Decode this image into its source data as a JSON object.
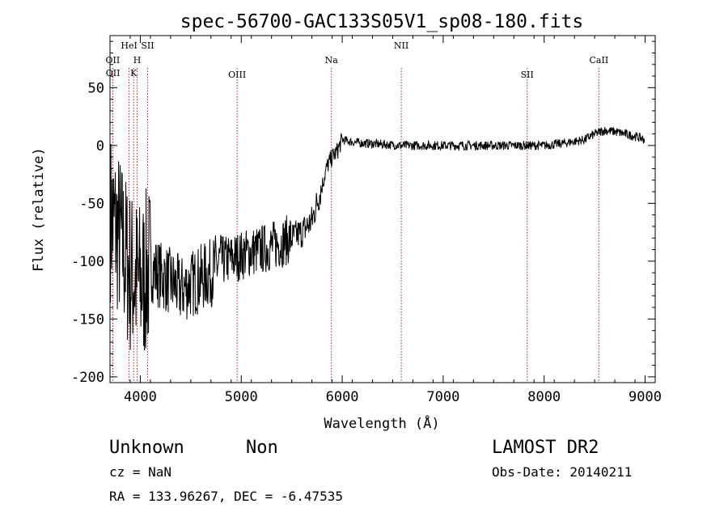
{
  "chart_data": {
    "type": "line",
    "title": "spec-56700-GAC133S05V1_sp08-180.fits",
    "xlabel": "Wavelength (Å)",
    "ylabel": "Flux (relative)",
    "xlim": [
      3700,
      9100
    ],
    "ylim": [
      -205,
      95
    ],
    "x_ticks": [
      4000,
      5000,
      6000,
      7000,
      8000,
      9000
    ],
    "y_ticks": [
      -200,
      -150,
      -100,
      -50,
      0,
      50
    ],
    "grid": false,
    "spectral_lines": [
      {
        "label": "OII",
        "x": 3727
      },
      {
        "label": "OII",
        "x": 3729
      },
      {
        "label": "HeI",
        "x": 3889
      },
      {
        "label": "K",
        "x": 3934
      },
      {
        "label": "H",
        "x": 3969
      },
      {
        "label": "SII",
        "x": 4072
      },
      {
        "label": "OIII",
        "x": 4959
      },
      {
        "label": "Na",
        "x": 5893
      },
      {
        "label": "NII",
        "x": 6585
      },
      {
        "label": "SII",
        "x": 7832
      },
      {
        "label": "CaII",
        "x": 8542
      }
    ],
    "series": [
      {
        "x": [
          3700,
          3800,
          3900,
          4000,
          4100,
          4200,
          4300,
          4400,
          4500,
          4600,
          4700,
          4800,
          4900,
          5000,
          5100,
          5200,
          5300,
          5400,
          5500,
          5600,
          5700,
          5800,
          5850,
          5900,
          5950,
          6000,
          6100,
          6200,
          6400,
          6600,
          6800,
          7000,
          7200,
          7400,
          7600,
          7800,
          8000,
          8200,
          8400,
          8500,
          8600,
          8700,
          8800,
          8900,
          9000
        ],
        "y": [
          -60,
          -80,
          -110,
          -120,
          -105,
          -112,
          -118,
          -125,
          -120,
          -115,
          -110,
          -100,
          -98,
          -95,
          -92,
          -90,
          -87,
          -84,
          -80,
          -75,
          -65,
          -35,
          -18,
          -10,
          -5,
          5,
          3,
          2,
          1,
          0,
          0,
          0,
          0,
          0,
          0,
          0,
          0,
          2,
          5,
          10,
          13,
          12,
          10,
          8,
          5
        ]
      }
    ]
  },
  "info": {
    "object_class": "Unknown",
    "subclass": "Non",
    "survey": "LAMOST DR2",
    "redshift": "cz = NaN",
    "obs_date": "Obs-Date: 20140211",
    "coords": "RA = 133.96267, DEC =  -6.47535"
  },
  "colors": {
    "spectrum": "#000000",
    "line_marker": "#b22222",
    "background": "#ffffff"
  }
}
